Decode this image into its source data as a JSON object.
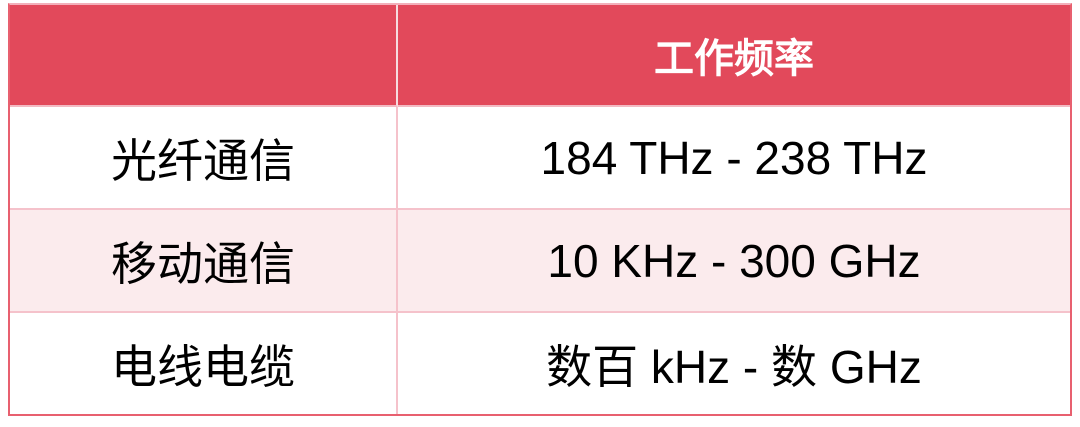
{
  "colors": {
    "header_background": "#E2495B",
    "header_text": "#FFFFFF",
    "zebra_row_background": "#FBEBED",
    "default_row_background": "#FFFFFF",
    "body_text": "#000000",
    "outer_border": "#E8606F",
    "inner_border": "#F5C2CB",
    "header_divider": "#F6DCDF"
  },
  "table": {
    "header": {
      "category_label": "",
      "frequency_label": "工作频率"
    },
    "rows": [
      {
        "category": "光纤通信",
        "frequency": "184 THz - 238 THz"
      },
      {
        "category": "移动通信",
        "frequency": "10 KHz - 300 GHz"
      },
      {
        "category": "电线电缆",
        "frequency": "数百 kHz - 数 GHz"
      }
    ]
  },
  "chart_data": {
    "type": "table",
    "columns": [
      "",
      "工作频率"
    ],
    "rows": [
      [
        "光纤通信",
        "184 THz - 238 THz"
      ],
      [
        "移动通信",
        "10 KHz - 300 GHz"
      ],
      [
        "电线电缆",
        "数百 kHz - 数 GHz"
      ]
    ]
  }
}
